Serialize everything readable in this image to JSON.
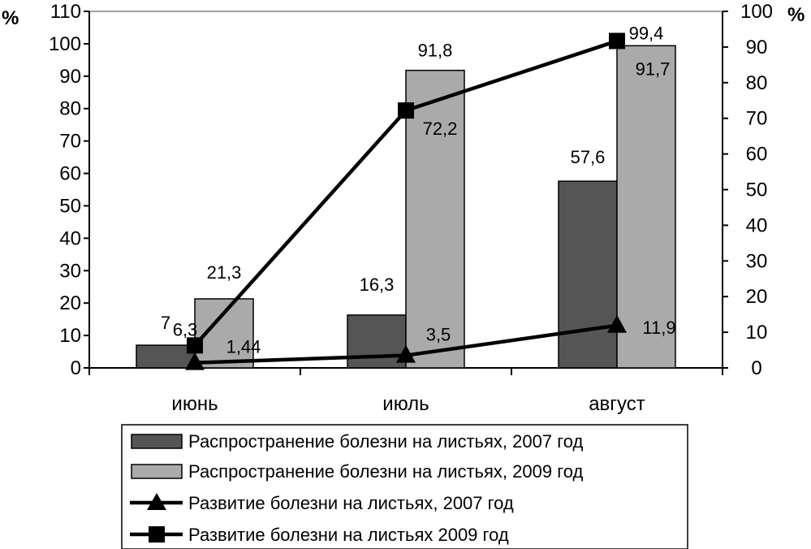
{
  "chart_data": {
    "type": "bar",
    "categories": [
      "июнь",
      "июль",
      "август"
    ],
    "y_left": {
      "unit": "%",
      "ylim": [
        0,
        110
      ],
      "ticks": [
        0,
        10,
        20,
        30,
        40,
        50,
        60,
        70,
        80,
        90,
        100,
        110
      ]
    },
    "y_right": {
      "unit": "%",
      "ylim": [
        0,
        100
      ],
      "ticks": [
        0,
        10,
        20,
        30,
        40,
        50,
        60,
        70,
        80,
        90,
        100
      ]
    },
    "bar_series": [
      {
        "name": "Распространение болезни на листьях, 2007 год",
        "values": [
          7,
          16.3,
          57.6
        ],
        "labels": [
          "7",
          "16,3",
          "57,6"
        ],
        "color": "#555555"
      },
      {
        "name": "Распространение болезни на листьях, 2009 год",
        "values": [
          21.3,
          91.8,
          99.4
        ],
        "labels": [
          "21,3",
          "91,8",
          "99,4"
        ],
        "color": "#aaaaaa"
      }
    ],
    "line_series": [
      {
        "name": "Развитие болезни на листьях, 2007 год",
        "values": [
          1.44,
          3.5,
          11.9
        ],
        "labels": [
          "1,44",
          "3,5",
          "11,9"
        ],
        "marker": "triangle",
        "axis": "right"
      },
      {
        "name": "Развитие болезни на листьях 2009 год",
        "values": [
          6.3,
          72.2,
          91.7
        ],
        "labels": [
          "6,3",
          "72,2",
          "91,7"
        ],
        "marker": "square",
        "axis": "right"
      }
    ],
    "grid": false,
    "legend_position": "bottom"
  }
}
